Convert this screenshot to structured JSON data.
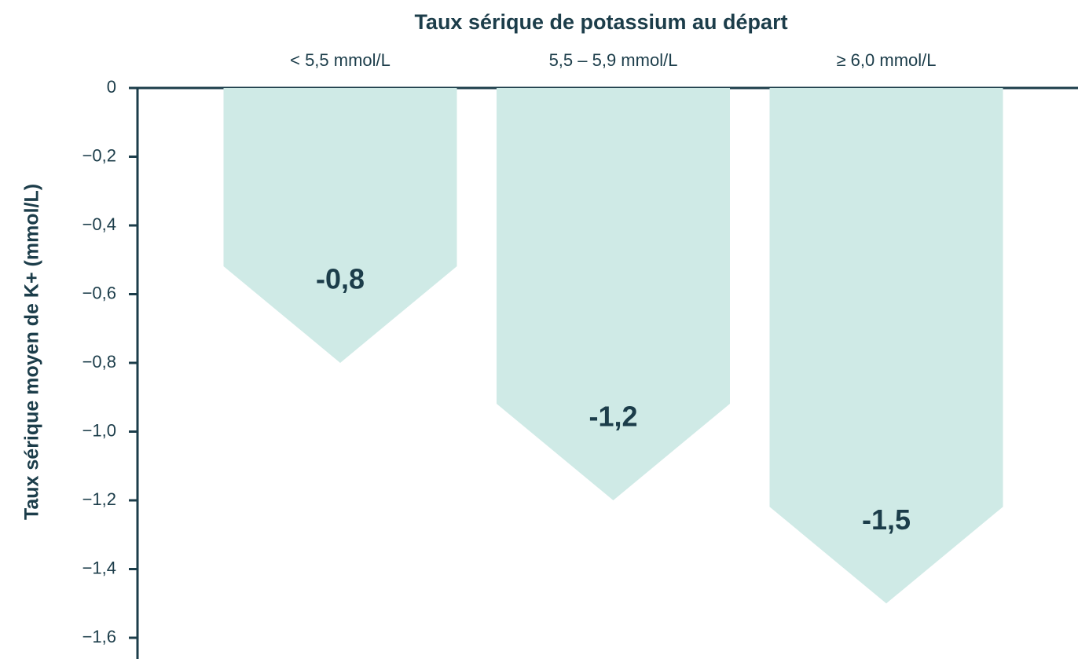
{
  "chart_data": {
    "type": "bar",
    "title": "Taux sérique de potassium au départ",
    "ylabel": "Taux sérique moyen de K+ (mmol/L)",
    "categories": [
      "< 5,5 mmol/L",
      "5,5 – 5,9 mmol/L",
      "≥ 6,0 mmol/L"
    ],
    "values": [
      -0.8,
      -1.2,
      -1.5
    ],
    "value_labels": [
      "-0,8",
      "-1,2",
      "-1,5"
    ],
    "color": "#cfeae6",
    "ylim": [
      -1.6,
      0
    ],
    "yticks": [
      0,
      {
        "value": -0.2,
        "label": "−0,2"
      },
      {
        "value": -0.4,
        "label": "−0,4"
      },
      {
        "value": -0.6,
        "label": "−0,6"
      },
      {
        "value": -0.8,
        "label": "−0,8"
      },
      {
        "value": -1.0,
        "label": "−1,0"
      },
      {
        "value": -1.2,
        "label": "−1,2"
      },
      {
        "value": -1.4,
        "label": "−1,4"
      },
      {
        "value": -1.6,
        "label": "−1,6"
      }
    ],
    "grid": false
  }
}
